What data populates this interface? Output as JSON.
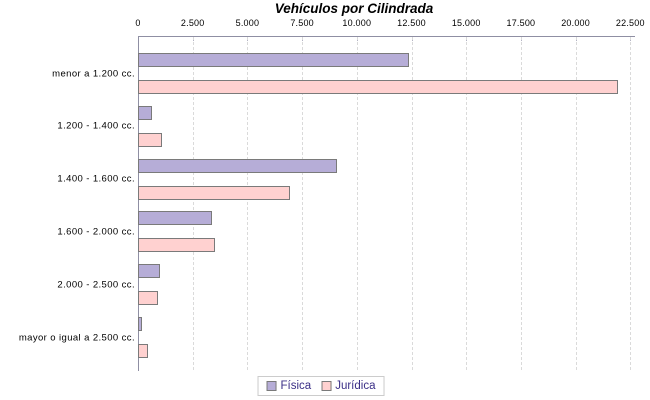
{
  "chart_data": {
    "type": "bar",
    "orientation": "horizontal",
    "title": "Vehículos por Cilindrada",
    "categories": [
      "menor a 1.200 cc.",
      "1.200 - 1.400 cc.",
      "1.400 - 1.600 cc.",
      "1.600 - 2.000 cc.",
      "2.000 - 2.500 cc.",
      "mayor o igual a 2.500 cc."
    ],
    "series": [
      {
        "name": "Física",
        "color": "#b6add7",
        "border_color": "#7a7a7a",
        "values": [
          12400,
          650,
          9100,
          3400,
          1000,
          200
        ]
      },
      {
        "name": "Jurídica",
        "color": "#ffd1d0",
        "border_color": "#7a7a7a",
        "values": [
          21950,
          1100,
          6950,
          3500,
          900,
          450
        ]
      }
    ],
    "xlim": [
      0,
      22500
    ],
    "x_ticks": [
      {
        "value": 0,
        "label": "0"
      },
      {
        "value": 2500,
        "label": "2.500"
      },
      {
        "value": 5000,
        "label": "5.000"
      },
      {
        "value": 7500,
        "label": "7.500"
      },
      {
        "value": 10000,
        "label": "10.000"
      },
      {
        "value": 12500,
        "label": "12.500"
      },
      {
        "value": 15000,
        "label": "15.000"
      },
      {
        "value": 17500,
        "label": "17.500"
      },
      {
        "value": 20000,
        "label": "20.000"
      },
      {
        "value": 22500,
        "label": "22.500"
      }
    ],
    "grid": "vertical-dashed",
    "legend_position": "bottom-center",
    "colors": {
      "grid": "#dadada",
      "axis": "#8f8fa3",
      "tick": "#b4b4c4",
      "legend_text": "#3b2f87",
      "legend_border": "#cccccc",
      "label_text": "#000000"
    }
  }
}
